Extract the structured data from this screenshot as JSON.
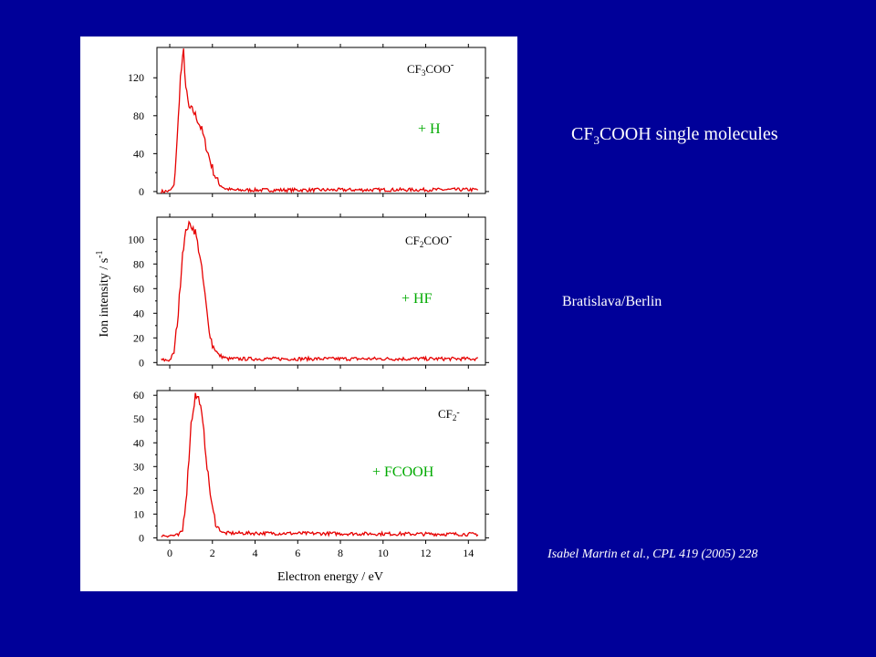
{
  "slide": {
    "title_parts": [
      "CF",
      "3",
      "COOH single molecules"
    ],
    "group": "Bratislava/Berlin",
    "citation": "Isabel Martin et al., CPL 419 (2005) 228"
  },
  "colors": {
    "background": "#000099",
    "trace": "#e60000",
    "loss_label": "#00aa00",
    "slide_text": "#ffffff"
  },
  "chart_data": {
    "type": "line",
    "xlabel": "Electron energy / eV",
    "ylabel": "Ion intensity / s",
    "ylabel_exp": "-1",
    "xlim": [
      -0.6,
      14.8
    ],
    "xticks": [
      0,
      2,
      4,
      6,
      8,
      10,
      12,
      14
    ],
    "grid": false,
    "panels": [
      {
        "species_main": "CF",
        "species_sub": "3",
        "species_rest": "COO",
        "species_sup": "-",
        "loss_label": "+ H",
        "ylim": [
          -2,
          152
        ],
        "yticks": [
          0,
          40,
          80,
          120
        ],
        "peak_points": [
          [
            -0.4,
            0
          ],
          [
            0,
            0.5
          ],
          [
            0.2,
            6
          ],
          [
            0.35,
            55
          ],
          [
            0.5,
            120
          ],
          [
            0.65,
            148
          ],
          [
            0.75,
            110
          ],
          [
            0.9,
            88
          ],
          [
            1.1,
            85
          ],
          [
            1.3,
            76
          ],
          [
            1.5,
            65
          ],
          [
            1.7,
            48
          ],
          [
            1.9,
            32
          ],
          [
            2.1,
            18
          ],
          [
            2.3,
            8
          ],
          [
            2.6,
            3
          ],
          [
            3.0,
            1.5
          ],
          [
            14.5,
            2
          ]
        ],
        "baseline": 2
      },
      {
        "species_main": "CF",
        "species_sub": "2",
        "species_rest": "COO",
        "species_sup": "-",
        "loss_label": "+ HF",
        "ylim": [
          -2,
          118
        ],
        "yticks": [
          0,
          20,
          40,
          60,
          80,
          100
        ],
        "peak_points": [
          [
            -0.4,
            2
          ],
          [
            0,
            2
          ],
          [
            0.2,
            8
          ],
          [
            0.4,
            40
          ],
          [
            0.6,
            90
          ],
          [
            0.8,
            110
          ],
          [
            1.0,
            112
          ],
          [
            1.2,
            106
          ],
          [
            1.4,
            88
          ],
          [
            1.6,
            62
          ],
          [
            1.8,
            32
          ],
          [
            2.0,
            14
          ],
          [
            2.3,
            6
          ],
          [
            2.7,
            3
          ],
          [
            14.5,
            3
          ]
        ],
        "baseline": 3
      },
      {
        "species_main": "CF",
        "species_sub": "2",
        "species_rest": "",
        "species_sup": "-",
        "loss_label": "+ FCOOH",
        "ylim": [
          -1,
          62
        ],
        "yticks": [
          0,
          10,
          20,
          30,
          40,
          50,
          60
        ],
        "peak_points": [
          [
            -0.4,
            1
          ],
          [
            0.4,
            1
          ],
          [
            0.6,
            3
          ],
          [
            0.8,
            20
          ],
          [
            1.0,
            48
          ],
          [
            1.2,
            60
          ],
          [
            1.4,
            58
          ],
          [
            1.6,
            44
          ],
          [
            1.8,
            26
          ],
          [
            2.0,
            12
          ],
          [
            2.2,
            5
          ],
          [
            2.5,
            2
          ],
          [
            14.5,
            1.5
          ]
        ],
        "baseline": 1.5
      }
    ]
  }
}
